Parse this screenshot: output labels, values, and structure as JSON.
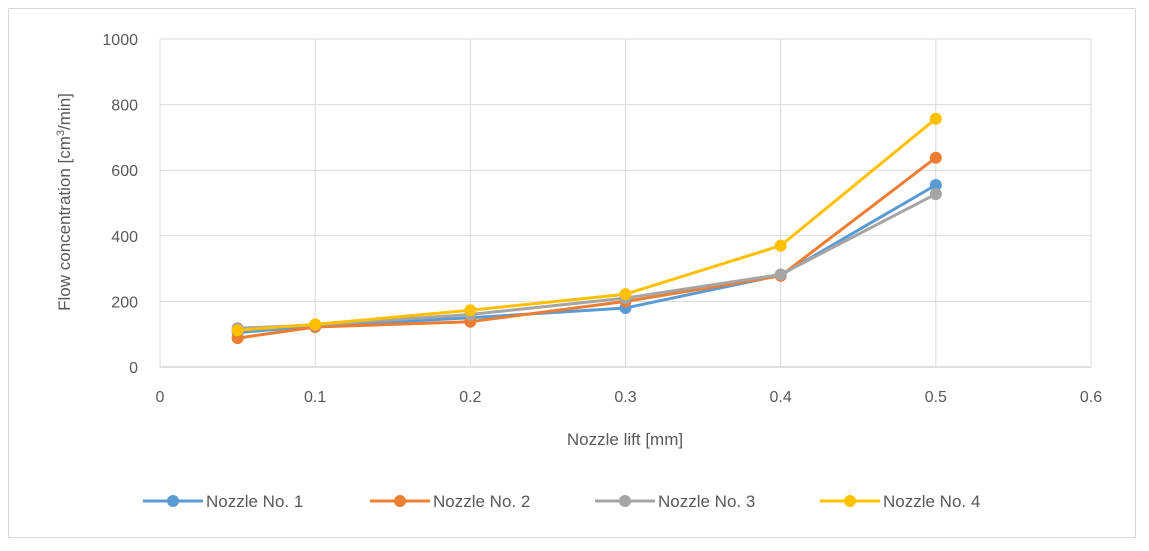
{
  "chart_data": {
    "type": "line",
    "xlabel": "Nozzle lift [mm]",
    "ylabel_parts": [
      "Flow concentration [cm",
      "3",
      "/min]"
    ],
    "xlim": [
      0,
      0.6
    ],
    "ylim": [
      0,
      1000
    ],
    "xticks": [
      "0",
      "0.1",
      "0.2",
      "0.3",
      "0.4",
      "0.5",
      "0.6"
    ],
    "yticks": [
      "0",
      "200",
      "400",
      "600",
      "800",
      "1000"
    ],
    "grid": true,
    "legend": "bottom",
    "x": [
      0.05,
      0.1,
      0.2,
      0.3,
      0.4,
      0.5
    ],
    "series": [
      {
        "name": "Nozzle No. 1",
        "color": "#5b9bd5",
        "values": [
          105,
          125,
          150,
          180,
          280,
          555
        ]
      },
      {
        "name": "Nozzle No. 2",
        "color": "#ed7d31",
        "values": [
          88,
          122,
          138,
          200,
          278,
          638
        ]
      },
      {
        "name": "Nozzle No. 3",
        "color": "#a5a5a5",
        "values": [
          118,
          128,
          160,
          210,
          282,
          527
        ]
      },
      {
        "name": "Nozzle No. 4",
        "color": "#ffc000",
        "values": [
          112,
          130,
          173,
          222,
          370,
          757
        ]
      }
    ]
  }
}
